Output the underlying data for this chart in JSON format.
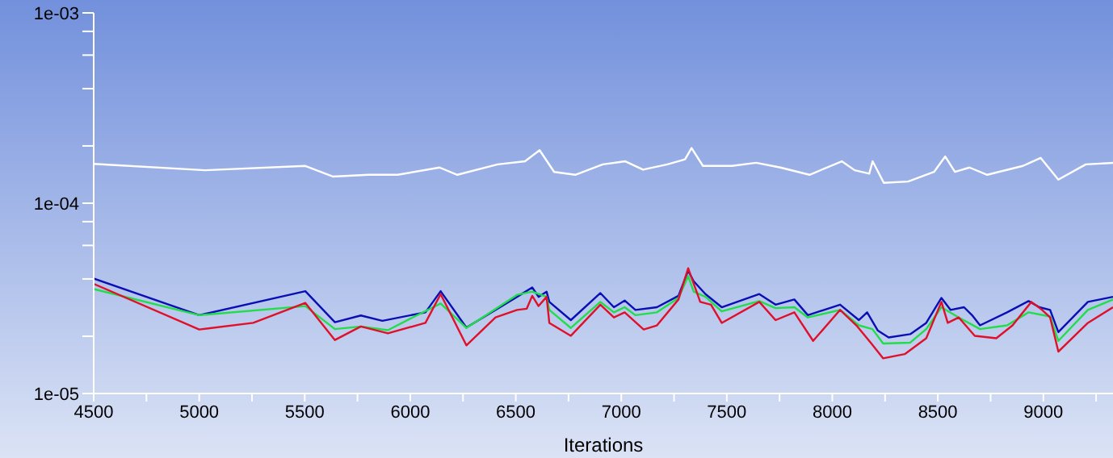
{
  "chart_data": {
    "type": "line",
    "xlabel": "Iterations",
    "log": "y",
    "marker": "none",
    "line_style": "solid",
    "xlim": [
      4500,
      9330
    ],
    "xticks": [
      4500,
      {
        "value": 4750,
        "label": null
      },
      5000,
      {
        "value": 5250,
        "label": null
      },
      5500,
      {
        "value": 5750,
        "label": null
      },
      6000,
      {
        "value": 6250,
        "label": null
      },
      6500,
      {
        "value": 6750,
        "label": null
      },
      7000,
      {
        "value": 7250,
        "label": null
      },
      7500,
      {
        "value": 7750,
        "label": null
      },
      8000,
      {
        "value": 8250,
        "label": null
      },
      8500,
      {
        "value": 8750,
        "label": null
      },
      9000,
      {
        "value": 9250,
        "label": null
      }
    ],
    "ylim": [
      1e-05,
      0.001
    ],
    "yticks": [
      {
        "value": 1e-05,
        "label": "1e-05"
      },
      {
        "value": 2e-05,
        "label": null
      },
      {
        "value": 4e-05,
        "label": null
      },
      {
        "value": 6e-05,
        "label": null
      },
      {
        "value": 8e-05,
        "label": null
      },
      {
        "value": 0.0001,
        "label": "1e-04"
      },
      {
        "value": 0.0002,
        "label": null
      },
      {
        "value": 0.0004,
        "label": null
      },
      {
        "value": 0.0006,
        "label": null
      },
      {
        "value": 0.0008,
        "label": null
      },
      {
        "value": 0.001,
        "label": "1e-03"
      }
    ],
    "series": [
      {
        "color": "#ffffff",
        "x": [
          4500,
          5028,
          5503,
          5633,
          5802,
          5940,
          6139,
          6223,
          6414,
          6544,
          6613,
          6682,
          6782,
          6912,
          7019,
          7103,
          7218,
          7302,
          7333,
          7387,
          7524,
          7639,
          7754,
          7892,
          8045,
          8106,
          8175,
          8191,
          8244,
          8359,
          8482,
          8535,
          8581,
          8650,
          8734,
          8903,
          8987,
          9071,
          9201,
          9330
        ],
        "values": [
          0.000161,
          0.000149,
          0.000157,
          0.000138,
          0.000141,
          0.000141,
          0.000154,
          0.000141,
          0.00016,
          0.000166,
          0.00019,
          0.000146,
          0.000141,
          0.00016,
          0.000166,
          0.00015,
          0.00016,
          0.00017,
          0.000195,
          0.000157,
          0.000157,
          0.000163,
          0.000154,
          0.000141,
          0.000166,
          0.000149,
          0.000143,
          0.000166,
          0.000128,
          0.00013,
          0.000146,
          0.000176,
          0.000146,
          0.000154,
          0.000141,
          0.000157,
          0.000173,
          0.000133,
          0.00016,
          0.000163
        ]
      },
      {
        "color": "#0a0fb4",
        "x": [
          4500,
          5000,
          5503,
          5643,
          5766,
          5868,
          6072,
          6144,
          6266,
          6506,
          6578,
          6608,
          6646,
          6659,
          6761,
          6901,
          6965,
          7016,
          7067,
          7169,
          7271,
          7317,
          7343,
          7399,
          7476,
          7654,
          7731,
          7820,
          7884,
          8037,
          8126,
          8165,
          8216,
          8267,
          8369,
          8445,
          8517,
          8560,
          8624,
          8662,
          8700,
          8828,
          8930,
          8981,
          9032,
          9071,
          9211,
          9330
        ],
        "values": [
          4.02e-05,
          2.58e-05,
          3.45e-05,
          2.37e-05,
          2.57e-05,
          2.41e-05,
          2.67e-05,
          3.45e-05,
          2.22e-05,
          3.22e-05,
          3.61e-05,
          3.22e-05,
          3.43e-05,
          3.03e-05,
          2.43e-05,
          3.37e-05,
          2.84e-05,
          3.08e-05,
          2.75e-05,
          2.84e-05,
          3.26e-05,
          4.42e-05,
          3.89e-05,
          3.33e-05,
          2.84e-05,
          3.33e-05,
          2.93e-05,
          3.12e-05,
          2.58e-05,
          2.93e-05,
          2.43e-05,
          2.67e-05,
          2.14e-05,
          1.97e-05,
          2.05e-05,
          2.35e-05,
          3.18e-05,
          2.75e-05,
          2.84e-05,
          2.58e-05,
          2.28e-05,
          2.67e-05,
          3.06e-05,
          2.84e-05,
          2.75e-05,
          2.1e-05,
          3.03e-05,
          3.22e-05
        ]
      },
      {
        "color": "#22dd4a",
        "x": [
          4500,
          5000,
          5503,
          5643,
          5766,
          5894,
          6021,
          6144,
          6266,
          6506,
          6578,
          6646,
          6659,
          6761,
          6901,
          6965,
          7016,
          7067,
          7169,
          7271,
          7317,
          7343,
          7399,
          7476,
          7654,
          7731,
          7820,
          7884,
          8037,
          8126,
          8190,
          8241,
          8369,
          8445,
          8517,
          8599,
          8700,
          8828,
          8930,
          9032,
          9071,
          9211,
          9330
        ],
        "values": [
          3.54e-05,
          2.58e-05,
          2.88e-05,
          2.18e-05,
          2.25e-05,
          2.15e-05,
          2.54e-05,
          2.97e-05,
          2.21e-05,
          3.3e-05,
          3.43e-05,
          3.22e-05,
          2.75e-05,
          2.21e-05,
          3.03e-05,
          2.67e-05,
          2.84e-05,
          2.58e-05,
          2.67e-05,
          3.18e-05,
          4.14e-05,
          3.43e-05,
          3.22e-05,
          2.7e-05,
          3.06e-05,
          2.81e-05,
          2.84e-05,
          2.51e-05,
          2.75e-05,
          2.28e-05,
          2.18e-05,
          1.83e-05,
          1.85e-05,
          2.18e-05,
          2.84e-05,
          2.51e-05,
          2.18e-05,
          2.28e-05,
          2.67e-05,
          2.54e-05,
          1.89e-05,
          2.75e-05,
          3.12e-05
        ]
      },
      {
        "color": "#e0102a",
        "x": [
          4500,
          5000,
          5256,
          5503,
          5643,
          5766,
          5894,
          6072,
          6144,
          6266,
          6404,
          6506,
          6552,
          6578,
          6608,
          6646,
          6659,
          6761,
          6901,
          6965,
          7016,
          7106,
          7169,
          7271,
          7317,
          7374,
          7425,
          7476,
          7654,
          7731,
          7820,
          7909,
          8037,
          8114,
          8185,
          8241,
          8343,
          8445,
          8517,
          8547,
          8599,
          8675,
          8777,
          8854,
          8943,
          8994,
          9032,
          9071,
          9211,
          9330
        ],
        "values": [
          3.77e-05,
          2.17e-05,
          2.35e-05,
          2.99e-05,
          1.91e-05,
          2.25e-05,
          2.07e-05,
          2.35e-05,
          3.33e-05,
          1.79e-05,
          2.51e-05,
          2.75e-05,
          2.79e-05,
          3.26e-05,
          2.88e-05,
          3.22e-05,
          2.35e-05,
          2.01e-05,
          2.93e-05,
          2.51e-05,
          2.67e-05,
          2.17e-05,
          2.28e-05,
          3.12e-05,
          4.55e-05,
          3.03e-05,
          2.93e-05,
          2.35e-05,
          3.03e-05,
          2.43e-05,
          2.67e-05,
          1.89e-05,
          2.75e-05,
          2.28e-05,
          1.83e-05,
          1.53e-05,
          1.61e-05,
          1.95e-05,
          3.03e-05,
          2.35e-05,
          2.51e-05,
          2.01e-05,
          1.95e-05,
          2.28e-05,
          3.03e-05,
          2.75e-05,
          2.51e-05,
          1.66e-05,
          2.35e-05,
          2.84e-05
        ]
      }
    ]
  }
}
